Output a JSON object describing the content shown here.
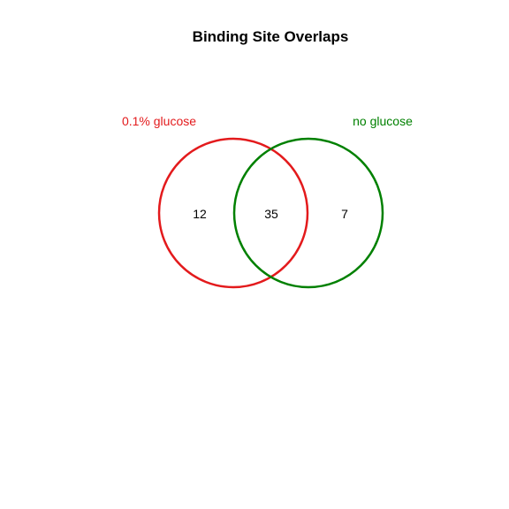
{
  "title": "Binding Site Overlaps",
  "sets": [
    {
      "label": "0.1% glucose",
      "color": "#e31a1c"
    },
    {
      "label": "no glucose",
      "color": "#008000"
    }
  ],
  "counts": {
    "only_a": "12",
    "both": "35",
    "only_b": "7"
  }
}
